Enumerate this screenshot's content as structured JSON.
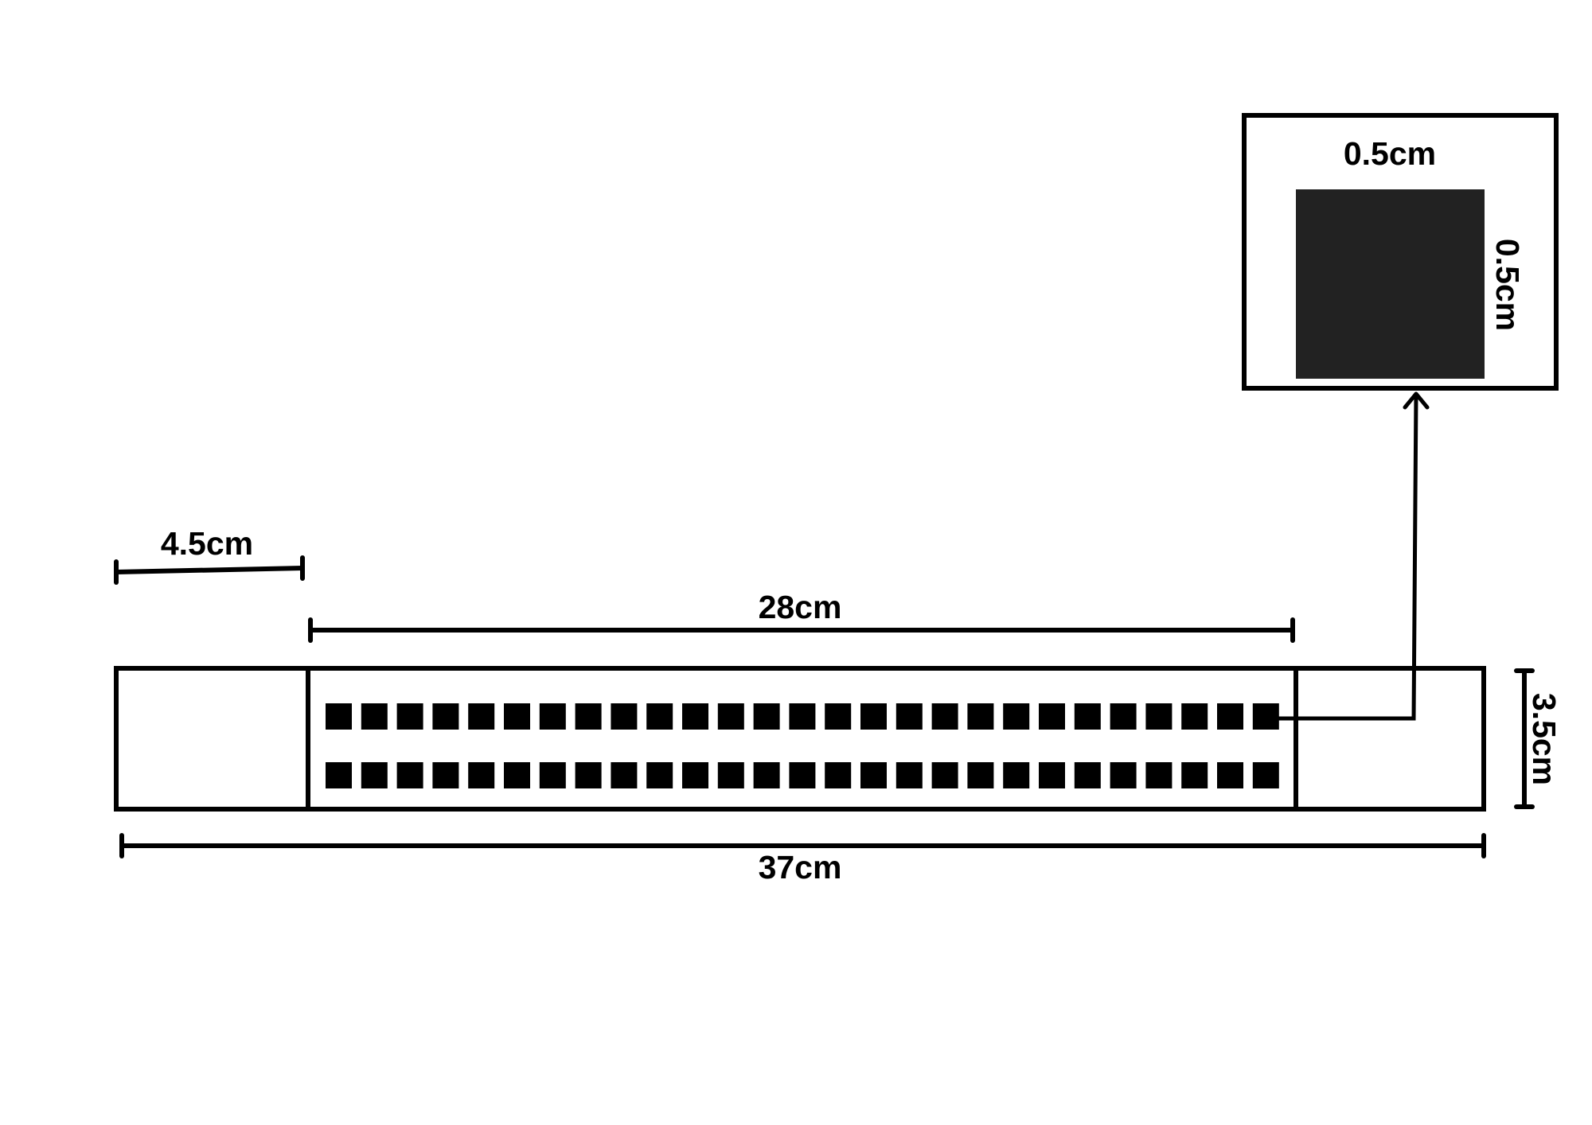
{
  "labels": {
    "segment_left_width": "4.5cm",
    "grid_area_width": "28cm",
    "total_width": "37cm",
    "total_height": "3.5cm",
    "square_width": "0.5cm",
    "square_height": "0.5cm"
  },
  "grid": {
    "rows": 2,
    "columns": 27
  },
  "colors": {
    "stroke": "#000000",
    "square": "#000000",
    "detail_square": "#222222",
    "background": "#ffffff"
  }
}
